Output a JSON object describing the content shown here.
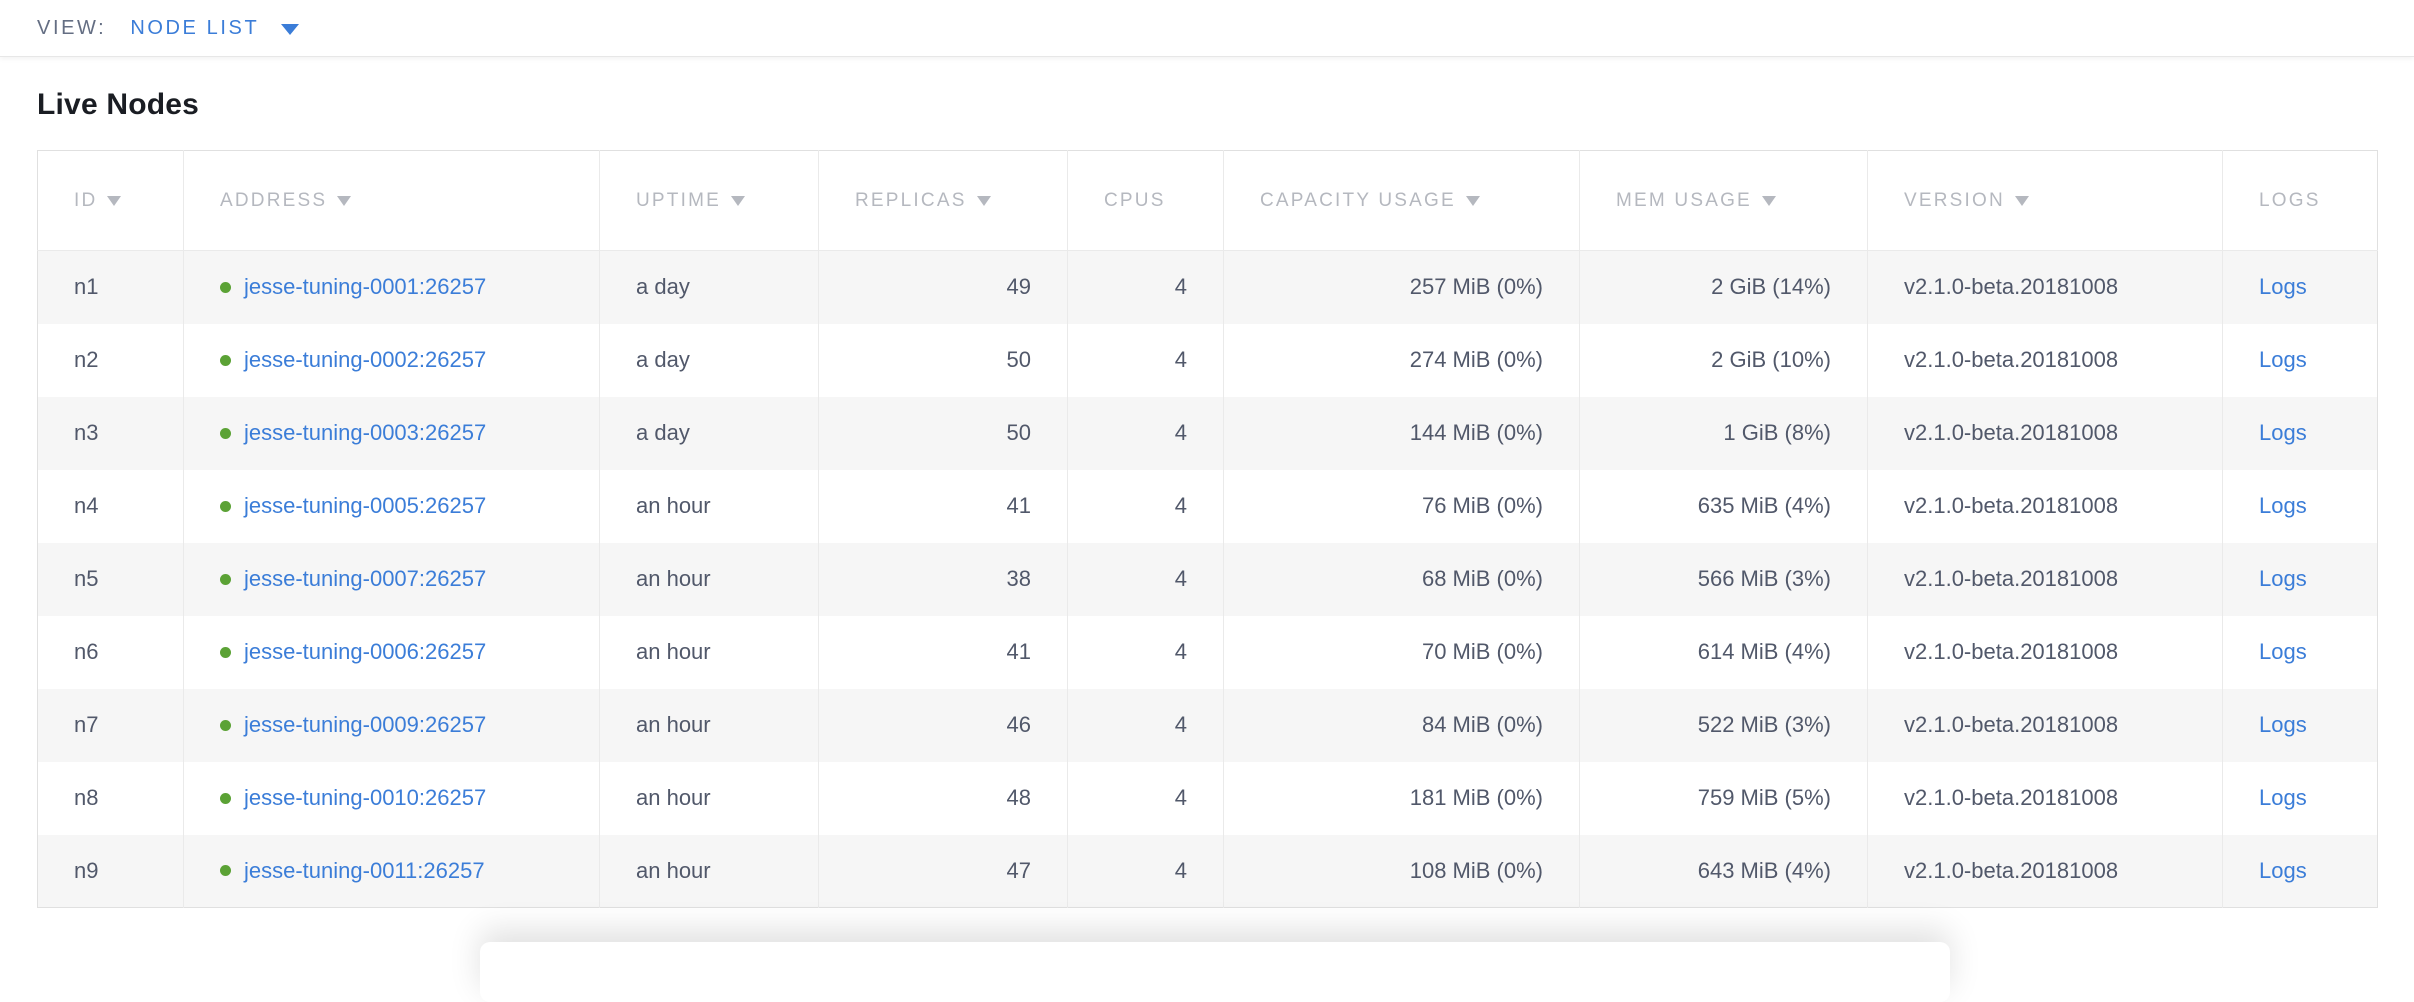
{
  "topbar": {
    "view_label": "VIEW:",
    "view_value": "NODE LIST"
  },
  "page": {
    "title": "Live Nodes"
  },
  "colors": {
    "link": "#3b7dd8",
    "healthy_dot": "#5ba235",
    "header_text": "#b5b8bf",
    "cell_text": "#51586a",
    "row_stripe": "#f6f6f6"
  },
  "table": {
    "columns": [
      {
        "key": "id",
        "label": "ID",
        "sortable": true,
        "align": "left"
      },
      {
        "key": "address",
        "label": "ADDRESS",
        "sortable": true,
        "align": "left"
      },
      {
        "key": "uptime",
        "label": "UPTIME",
        "sortable": true,
        "align": "left"
      },
      {
        "key": "replicas",
        "label": "REPLICAS",
        "sortable": true,
        "align": "right"
      },
      {
        "key": "cpus",
        "label": "CPUS",
        "sortable": false,
        "align": "right"
      },
      {
        "key": "capacity",
        "label": "CAPACITY USAGE",
        "sortable": true,
        "align": "right"
      },
      {
        "key": "mem",
        "label": "MEM USAGE",
        "sortable": true,
        "align": "right"
      },
      {
        "key": "version",
        "label": "VERSION",
        "sortable": true,
        "align": "left"
      },
      {
        "key": "logs",
        "label": "LOGS",
        "sortable": false,
        "align": "left"
      }
    ],
    "rows": [
      {
        "id": "n1",
        "status": "healthy",
        "address": "jesse-tuning-0001:26257",
        "uptime": "a day",
        "replicas": "49",
        "cpus": "4",
        "capacity": "257 MiB (0%)",
        "mem": "2 GiB (14%)",
        "version": "v2.1.0-beta.20181008",
        "logs": "Logs"
      },
      {
        "id": "n2",
        "status": "healthy",
        "address": "jesse-tuning-0002:26257",
        "uptime": "a day",
        "replicas": "50",
        "cpus": "4",
        "capacity": "274 MiB (0%)",
        "mem": "2 GiB (10%)",
        "version": "v2.1.0-beta.20181008",
        "logs": "Logs"
      },
      {
        "id": "n3",
        "status": "healthy",
        "address": "jesse-tuning-0003:26257",
        "uptime": "a day",
        "replicas": "50",
        "cpus": "4",
        "capacity": "144 MiB (0%)",
        "mem": "1 GiB (8%)",
        "version": "v2.1.0-beta.20181008",
        "logs": "Logs"
      },
      {
        "id": "n4",
        "status": "healthy",
        "address": "jesse-tuning-0005:26257",
        "uptime": "an hour",
        "replicas": "41",
        "cpus": "4",
        "capacity": "76 MiB (0%)",
        "mem": "635 MiB (4%)",
        "version": "v2.1.0-beta.20181008",
        "logs": "Logs"
      },
      {
        "id": "n5",
        "status": "healthy",
        "address": "jesse-tuning-0007:26257",
        "uptime": "an hour",
        "replicas": "38",
        "cpus": "4",
        "capacity": "68 MiB (0%)",
        "mem": "566 MiB (3%)",
        "version": "v2.1.0-beta.20181008",
        "logs": "Logs"
      },
      {
        "id": "n6",
        "status": "healthy",
        "address": "jesse-tuning-0006:26257",
        "uptime": "an hour",
        "replicas": "41",
        "cpus": "4",
        "capacity": "70 MiB (0%)",
        "mem": "614 MiB (4%)",
        "version": "v2.1.0-beta.20181008",
        "logs": "Logs"
      },
      {
        "id": "n7",
        "status": "healthy",
        "address": "jesse-tuning-0009:26257",
        "uptime": "an hour",
        "replicas": "46",
        "cpus": "4",
        "capacity": "84 MiB (0%)",
        "mem": "522 MiB (3%)",
        "version": "v2.1.0-beta.20181008",
        "logs": "Logs"
      },
      {
        "id": "n8",
        "status": "healthy",
        "address": "jesse-tuning-0010:26257",
        "uptime": "an hour",
        "replicas": "48",
        "cpus": "4",
        "capacity": "181 MiB (0%)",
        "mem": "759 MiB (5%)",
        "version": "v2.1.0-beta.20181008",
        "logs": "Logs"
      },
      {
        "id": "n9",
        "status": "healthy",
        "address": "jesse-tuning-0011:26257",
        "uptime": "an hour",
        "replicas": "47",
        "cpus": "4",
        "capacity": "108 MiB (0%)",
        "mem": "643 MiB (4%)",
        "version": "v2.1.0-beta.20181008",
        "logs": "Logs"
      }
    ]
  }
}
